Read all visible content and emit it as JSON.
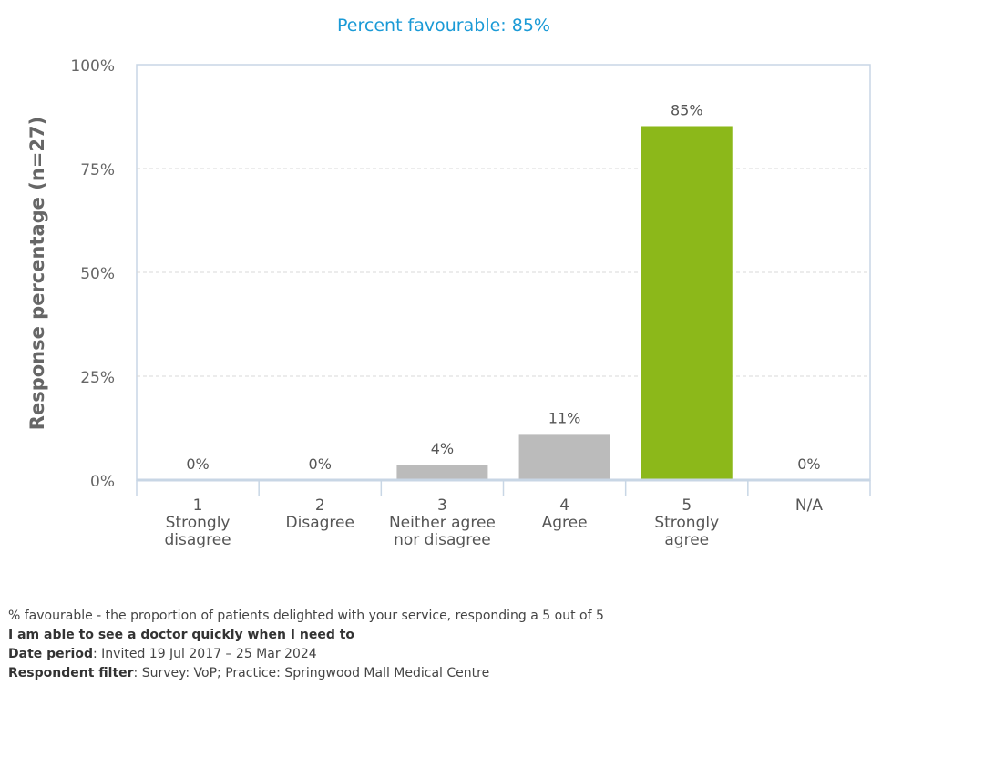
{
  "chart_data": {
    "type": "bar",
    "title": "Percent favourable: 85%",
    "ylabel": "Response percentage (n=27)",
    "xlabel": "",
    "ylim": [
      0,
      100
    ],
    "yticks": [
      "0%",
      "25%",
      "50%",
      "75%",
      "100%"
    ],
    "ytick_values": [
      0,
      25,
      50,
      75,
      100
    ],
    "grid": true,
    "categories": [
      {
        "code": "1",
        "label_lines": [
          "Strongly",
          "disagree"
        ]
      },
      {
        "code": "2",
        "label_lines": [
          "Disagree"
        ]
      },
      {
        "code": "3",
        "label_lines": [
          "Neither agree",
          "nor disagree"
        ]
      },
      {
        "code": "4",
        "label_lines": [
          "Agree"
        ]
      },
      {
        "code": "5",
        "label_lines": [
          "Strongly",
          "agree"
        ]
      },
      {
        "code": "N/A",
        "label_lines": []
      }
    ],
    "values": [
      0,
      0,
      3.7,
      11.1,
      85.2,
      0
    ],
    "value_labels": [
      "0%",
      "0%",
      "4%",
      "11%",
      "85%",
      "0%"
    ],
    "colors": [
      "#bbbbbb",
      "#bbbbbb",
      "#bbbbbb",
      "#bbbbbb",
      "#8cb81a",
      "#bbbbbb"
    ],
    "title_color": "#1a9ad6",
    "axis_color": "#c8d6e5"
  },
  "footer": {
    "line1": "% favourable - the proportion of patients delighted with your service, responding a 5 out of 5",
    "question": "I am able to see a doctor quickly when I need to",
    "date_label": "Date period",
    "date_value": ": Invited 19 Jul 2017 – 25 Mar 2024",
    "filter_label": "Respondent filter",
    "filter_value": ": Survey: VoP; Practice: Springwood Mall Medical Centre"
  }
}
